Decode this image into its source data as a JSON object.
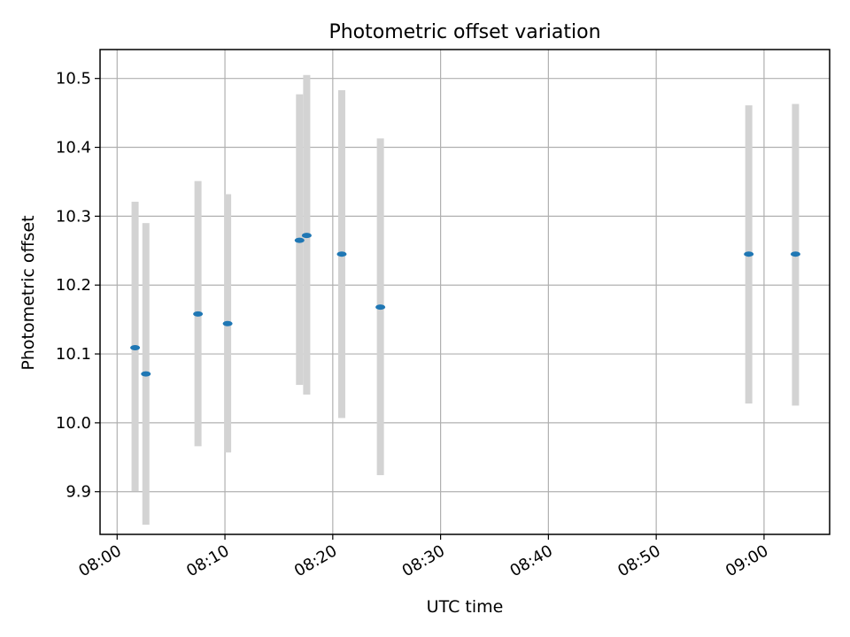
{
  "chart_data": {
    "type": "scatter",
    "title": "Photometric offset variation",
    "xlabel": "UTC time",
    "ylabel": "Photometric offset",
    "x_tick_labels": [
      "08:00",
      "08:10",
      "08:20",
      "08:30",
      "08:40",
      "08:50",
      "09:00"
    ],
    "y_tick_labels": [
      "9.9",
      "10.0",
      "10.1",
      "10.2",
      "10.3",
      "10.4",
      "10.5"
    ],
    "xlim": [
      "07:58:25",
      "09:06:05"
    ],
    "ylim": [
      9.838,
      10.542
    ],
    "grid": true,
    "legend": false,
    "colors": {
      "marker": "#1f77b4",
      "errorbar": "#d3d3d3",
      "grid": "#b0b0b0",
      "axes": "#000000"
    },
    "series": [
      {
        "points": [
          {
            "x": "08:01:40",
            "y": 10.109,
            "ymin": 9.901,
            "ymax": 10.321
          },
          {
            "x": "08:02:40",
            "y": 10.071,
            "ymin": 9.852,
            "ymax": 10.29
          },
          {
            "x": "08:07:30",
            "y": 10.158,
            "ymin": 9.966,
            "ymax": 10.351
          },
          {
            "x": "08:10:15",
            "y": 10.144,
            "ymin": 9.957,
            "ymax": 10.332
          },
          {
            "x": "08:16:55",
            "y": 10.265,
            "ymin": 10.055,
            "ymax": 10.477
          },
          {
            "x": "08:17:35",
            "y": 10.272,
            "ymin": 10.041,
            "ymax": 10.505
          },
          {
            "x": "08:20:50",
            "y": 10.245,
            "ymin": 10.007,
            "ymax": 10.483
          },
          {
            "x": "08:24:25",
            "y": 10.168,
            "ymin": 9.924,
            "ymax": 10.413
          },
          {
            "x": "08:58:35",
            "y": 10.245,
            "ymin": 10.028,
            "ymax": 10.461
          },
          {
            "x": "09:02:55",
            "y": 10.245,
            "ymin": 10.025,
            "ymax": 10.463
          }
        ]
      }
    ]
  }
}
